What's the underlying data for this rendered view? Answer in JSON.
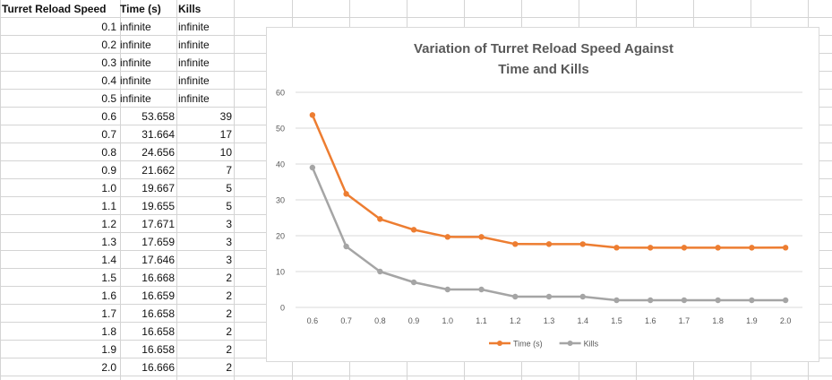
{
  "sheet": {
    "headers": [
      "Turret Reload Speed",
      "Time (s)",
      "Kills"
    ],
    "rows": [
      [
        "0.1",
        "infinite",
        "infinite"
      ],
      [
        "0.2",
        "infinite",
        "infinite"
      ],
      [
        "0.3",
        "infinite",
        "infinite"
      ],
      [
        "0.4",
        "infinite",
        "infinite"
      ],
      [
        "0.5",
        "infinite",
        "infinite"
      ],
      [
        "0.6",
        "53.658",
        "39"
      ],
      [
        "0.7",
        "31.664",
        "17"
      ],
      [
        "0.8",
        "24.656",
        "10"
      ],
      [
        "0.9",
        "21.662",
        "7"
      ],
      [
        "1.0",
        "19.667",
        "5"
      ],
      [
        "1.1",
        "19.655",
        "5"
      ],
      [
        "1.2",
        "17.671",
        "3"
      ],
      [
        "1.3",
        "17.659",
        "3"
      ],
      [
        "1.4",
        "17.646",
        "3"
      ],
      [
        "1.5",
        "16.668",
        "2"
      ],
      [
        "1.6",
        "16.659",
        "2"
      ],
      [
        "1.7",
        "16.658",
        "2"
      ],
      [
        "1.8",
        "16.658",
        "2"
      ],
      [
        "1.9",
        "16.658",
        "2"
      ],
      [
        "2.0",
        "16.666",
        "2"
      ]
    ]
  },
  "chart_data": {
    "type": "line",
    "title": "Variation of Turret Reload Speed Against Time and Kills",
    "title_lines": [
      "Variation of Turret Reload Speed Against",
      "Time and Kills"
    ],
    "categories": [
      "0.6",
      "0.7",
      "0.8",
      "0.9",
      "1.0",
      "1.1",
      "1.2",
      "1.3",
      "1.4",
      "1.5",
      "1.6",
      "1.7",
      "1.8",
      "1.9",
      "2.0"
    ],
    "series": [
      {
        "name": "Time (s)",
        "color": "#ED7D31",
        "values": [
          53.658,
          31.664,
          24.656,
          21.662,
          19.667,
          19.655,
          17.671,
          17.659,
          17.646,
          16.668,
          16.659,
          16.658,
          16.658,
          16.658,
          16.666
        ]
      },
      {
        "name": "Kills",
        "color": "#A5A5A5",
        "values": [
          39,
          17,
          10,
          7,
          5,
          5,
          3,
          3,
          3,
          2,
          2,
          2,
          2,
          2,
          2
        ]
      }
    ],
    "ylim": [
      0,
      60
    ],
    "yticks": [
      "0",
      "10",
      "20",
      "30",
      "40",
      "50",
      "60"
    ],
    "grid": true,
    "legend": "bottom"
  }
}
